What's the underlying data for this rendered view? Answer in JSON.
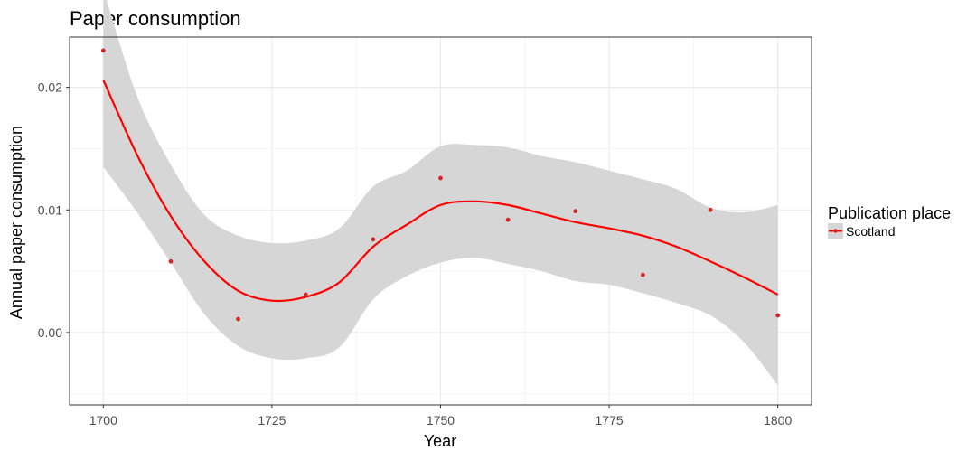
{
  "chart_data": {
    "type": "line",
    "title": "Paper consumption",
    "xlabel": "Year",
    "ylabel": "Annual paper consumption",
    "xlim": [
      1695,
      1805
    ],
    "ylim": [
      -0.0059,
      0.0241
    ],
    "x_ticks": [
      1700,
      1725,
      1750,
      1775,
      1800
    ],
    "x_tick_labels": [
      "1700",
      "1725",
      "1750",
      "1775",
      "1800"
    ],
    "y_ticks": [
      0.0,
      0.01,
      0.02
    ],
    "y_tick_labels": [
      "0.00",
      "0.01",
      "0.02"
    ],
    "grid": true,
    "legend": {
      "title": "Publication place",
      "position": "right",
      "entries": [
        "Scotland"
      ]
    },
    "colors": {
      "series": "#ff0000",
      "points": "#d62728",
      "ribbon": "#d6d6d6",
      "grid_major": "#ebebeb",
      "grid_minor": "#f5f5f5",
      "panel_border": "#333333"
    },
    "series": [
      {
        "name": "Scotland",
        "points": {
          "x": [
            1700,
            1710,
            1720,
            1730,
            1740,
            1750,
            1760,
            1770,
            1780,
            1790,
            1800
          ],
          "y": [
            0.023,
            0.0058,
            0.0011,
            0.0031,
            0.0076,
            0.0126,
            0.0092,
            0.0099,
            0.0047,
            0.01,
            0.0014
          ]
        },
        "smooth": {
          "x": [
            1700,
            1705,
            1710,
            1715,
            1720,
            1725,
            1730,
            1735,
            1740,
            1745,
            1750,
            1755,
            1760,
            1765,
            1770,
            1775,
            1780,
            1785,
            1790,
            1795,
            1800
          ],
          "y": [
            0.0206,
            0.0145,
            0.0095,
            0.0058,
            0.0034,
            0.0026,
            0.0029,
            0.0041,
            0.007,
            0.0088,
            0.0104,
            0.0107,
            0.0104,
            0.0097,
            0.009,
            0.0085,
            0.0079,
            0.007,
            0.0058,
            0.0045,
            0.0031
          ],
          "lower": [
            0.0135,
            0.0098,
            0.0057,
            0.0015,
            -0.0011,
            -0.0021,
            -0.0021,
            -0.0012,
            0.0027,
            0.0046,
            0.0057,
            0.0061,
            0.0056,
            0.005,
            0.0042,
            0.0039,
            0.0032,
            0.0024,
            0.0014,
            -0.0008,
            -0.0043
          ],
          "upper": [
            0.028,
            0.0193,
            0.0137,
            0.0096,
            0.0079,
            0.0073,
            0.0075,
            0.0085,
            0.0119,
            0.0132,
            0.0152,
            0.0153,
            0.0151,
            0.0144,
            0.0139,
            0.0132,
            0.0125,
            0.0117,
            0.0102,
            0.0098,
            0.0104
          ]
        }
      }
    ]
  }
}
